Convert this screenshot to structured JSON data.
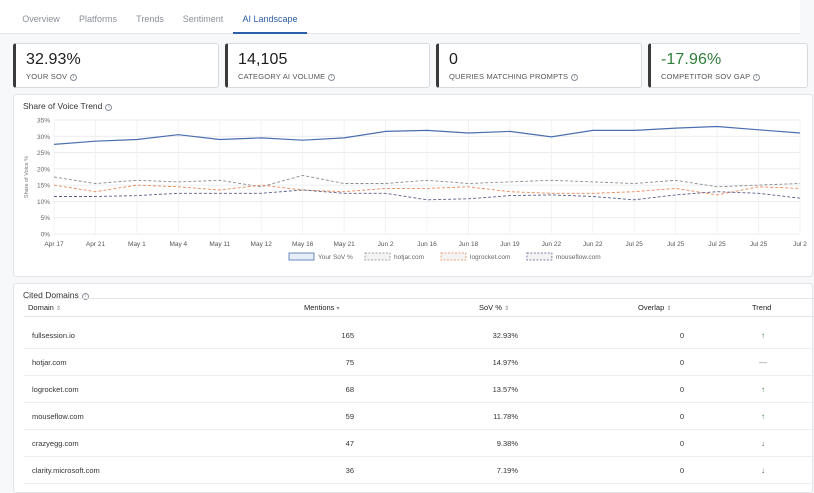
{
  "tabs": [
    {
      "label": "Overview"
    },
    {
      "label": "Platforms"
    },
    {
      "label": "Trends"
    },
    {
      "label": "Sentiment"
    },
    {
      "label": "AI Landscape",
      "active": true
    }
  ],
  "kpis": [
    {
      "value": "32.93%",
      "label": "YOUR SOV"
    },
    {
      "value": "14,105",
      "label": "CATEGORY AI VOLUME"
    },
    {
      "value": "0",
      "label": "QUERIES MATCHING PROMPTS"
    },
    {
      "value": "-17.96%",
      "label": "COMPETITOR SOV GAP"
    }
  ],
  "sov_panel": {
    "title": "Share of Voice Trend"
  },
  "chart_data": {
    "type": "line",
    "title": "Share of Voice Trend",
    "ylabel": "Share of Voice %",
    "ylim": [
      0,
      35
    ],
    "yticks": [
      "0%",
      "5%",
      "10%",
      "15%",
      "20%",
      "25%",
      "30%",
      "35%"
    ],
    "categories": [
      "Apr 17",
      "Apr 21",
      "May 1",
      "May 4",
      "May 11",
      "May 12",
      "May 16",
      "May 21",
      "Jun 2",
      "Jun 16",
      "Jun 18",
      "Jun 19",
      "Jun 22",
      "Jun 22",
      "Jul 25",
      "Jul 25",
      "Jul 25",
      "Jul 25",
      "Jul 2"
    ],
    "series": [
      {
        "name": "Your SoV %",
        "color": "#4a6fb0",
        "style": "solid",
        "values": [
          27.5,
          28.5,
          29,
          30.5,
          29,
          29.5,
          28.8,
          29.5,
          31.5,
          31.8,
          31,
          31.5,
          29.8,
          31.8,
          31.8,
          32.5,
          33,
          32,
          31
        ]
      },
      {
        "name": "hotjar.com",
        "color": "#8d8d8d",
        "style": "dashed",
        "values": [
          17.5,
          15.5,
          16.5,
          16,
          16.5,
          14.5,
          18,
          15.5,
          15.5,
          16.5,
          15.5,
          16,
          16.5,
          16,
          15.5,
          16.5,
          14.5,
          15,
          15.5
        ]
      },
      {
        "name": "logrocket.com",
        "color": "#e8885a",
        "style": "dashed",
        "values": [
          15,
          13,
          15,
          14.5,
          13.5,
          15,
          13.5,
          13,
          14,
          14,
          14.5,
          13,
          12.5,
          12.5,
          13,
          14,
          12,
          14.5,
          14
        ]
      },
      {
        "name": "mouseflow.com",
        "color": "#5a5f8a",
        "style": "dashed",
        "values": [
          11.5,
          11.5,
          11.8,
          12.5,
          12.5,
          12.5,
          13.5,
          12.5,
          12.5,
          10.5,
          10.8,
          11.8,
          12,
          11.5,
          10.5,
          12,
          13,
          12.5,
          11
        ]
      }
    ]
  },
  "domains_panel": {
    "title": "Cited Domains",
    "headers": {
      "domain": "Domain",
      "mentions": "Mentions",
      "sov": "SoV %",
      "overlap": "Overlap",
      "trend": "Trend"
    },
    "rows": [
      {
        "domain": "fullsession.io",
        "mentions": "165",
        "sov": "32.93%",
        "overlap": "0",
        "trend": "↑",
        "trend_color": "#2f7d3a"
      },
      {
        "domain": "hotjar.com",
        "mentions": "75",
        "sov": "14.97%",
        "overlap": "0",
        "trend": "—",
        "trend_color": "#888888"
      },
      {
        "domain": "logrocket.com",
        "mentions": "68",
        "sov": "13.57%",
        "overlap": "0",
        "trend": "↑",
        "trend_color": "#2f7d3a"
      },
      {
        "domain": "mouseflow.com",
        "mentions": "59",
        "sov": "11.78%",
        "overlap": "0",
        "trend": "↑",
        "trend_color": "#2f7d3a"
      },
      {
        "domain": "crazyegg.com",
        "mentions": "47",
        "sov": "9.38%",
        "overlap": "0",
        "trend": "↓",
        "trend_color": "#555555"
      },
      {
        "domain": "clarity.microsoft.com",
        "mentions": "36",
        "sov": "7.19%",
        "overlap": "0",
        "trend": "↓",
        "trend_color": "#555555"
      }
    ]
  }
}
